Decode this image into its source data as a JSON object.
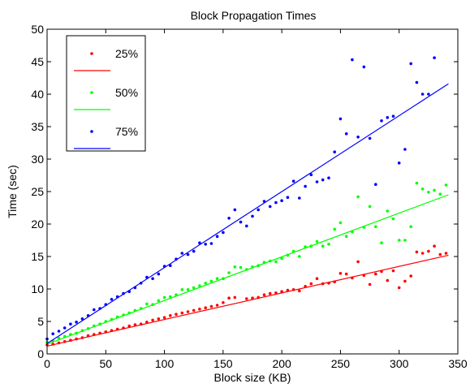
{
  "chart_data": {
    "type": "scatter",
    "title": "Block Propagation Times",
    "xlabel": "Block size (KB)",
    "ylabel": "Time (sec)",
    "xlim": [
      0,
      350
    ],
    "ylim": [
      0,
      50
    ],
    "xticks": [
      0,
      50,
      100,
      150,
      200,
      250,
      300,
      350
    ],
    "yticks": [
      0,
      5,
      10,
      15,
      20,
      25,
      30,
      35,
      40,
      45,
      50
    ],
    "grid": false,
    "legend_position": "top-left",
    "series": [
      {
        "name": "25%",
        "color": "#ff0000",
        "points": [
          [
            0,
            1.4
          ],
          [
            5,
            1.5
          ],
          [
            10,
            1.7
          ],
          [
            15,
            1.9
          ],
          [
            20,
            2.1
          ],
          [
            25,
            2.3
          ],
          [
            30,
            2.5
          ],
          [
            35,
            2.8
          ],
          [
            40,
            3.0
          ],
          [
            45,
            3.2
          ],
          [
            50,
            3.4
          ],
          [
            55,
            3.6
          ],
          [
            60,
            3.8
          ],
          [
            65,
            4.0
          ],
          [
            70,
            4.3
          ],
          [
            75,
            4.5
          ],
          [
            80,
            4.6
          ],
          [
            85,
            4.9
          ],
          [
            90,
            5.2
          ],
          [
            95,
            5.4
          ],
          [
            100,
            5.6
          ],
          [
            105,
            5.9
          ],
          [
            110,
            6.1
          ],
          [
            115,
            6.3
          ],
          [
            120,
            6.5
          ],
          [
            125,
            6.7
          ],
          [
            130,
            6.9
          ],
          [
            135,
            7.1
          ],
          [
            140,
            7.3
          ],
          [
            145,
            7.5
          ],
          [
            150,
            7.9
          ],
          [
            155,
            8.6
          ],
          [
            160,
            8.7
          ],
          [
            170,
            8.5
          ],
          [
            175,
            8.6
          ],
          [
            180,
            8.7
          ],
          [
            185,
            9.1
          ],
          [
            190,
            9.3
          ],
          [
            195,
            9.4
          ],
          [
            200,
            9.6
          ],
          [
            205,
            9.8
          ],
          [
            210,
            9.9
          ],
          [
            215,
            9.7
          ],
          [
            220,
            10.4
          ],
          [
            225,
            10.8
          ],
          [
            230,
            11.6
          ],
          [
            235,
            10.8
          ],
          [
            240,
            10.9
          ],
          [
            245,
            11.1
          ],
          [
            250,
            12.4
          ],
          [
            255,
            12.3
          ],
          [
            260,
            11.7
          ],
          [
            265,
            14.2
          ],
          [
            270,
            12.1
          ],
          [
            275,
            10.7
          ],
          [
            280,
            12.3
          ],
          [
            285,
            12.7
          ],
          [
            290,
            11.3
          ],
          [
            295,
            12.8
          ],
          [
            300,
            10.2
          ],
          [
            305,
            11.2
          ],
          [
            310,
            12.0
          ],
          [
            315,
            15.7
          ],
          [
            320,
            15.5
          ],
          [
            325,
            15.8
          ],
          [
            330,
            16.6
          ],
          [
            335,
            15.3
          ],
          [
            340,
            15.5
          ]
        ],
        "fit": [
          [
            0,
            1.2
          ],
          [
            342,
            15.2
          ]
        ]
      },
      {
        "name": "50%",
        "color": "#00ff00",
        "points": [
          [
            0,
            1.8
          ],
          [
            5,
            2.0
          ],
          [
            10,
            2.4
          ],
          [
            15,
            2.7
          ],
          [
            20,
            3.0
          ],
          [
            25,
            3.2
          ],
          [
            30,
            3.6
          ],
          [
            35,
            3.9
          ],
          [
            40,
            4.3
          ],
          [
            45,
            4.6
          ],
          [
            50,
            5.0
          ],
          [
            55,
            5.3
          ],
          [
            60,
            5.7
          ],
          [
            65,
            6.0
          ],
          [
            70,
            6.3
          ],
          [
            75,
            6.7
          ],
          [
            80,
            7.0
          ],
          [
            85,
            7.7
          ],
          [
            90,
            7.6
          ],
          [
            95,
            8.2
          ],
          [
            100,
            8.7
          ],
          [
            105,
            8.8
          ],
          [
            110,
            9.1
          ],
          [
            115,
            9.9
          ],
          [
            120,
            9.9
          ],
          [
            125,
            10.2
          ],
          [
            130,
            10.5
          ],
          [
            135,
            10.9
          ],
          [
            140,
            11.2
          ],
          [
            145,
            11.6
          ],
          [
            150,
            11.6
          ],
          [
            155,
            12.5
          ],
          [
            160,
            13.4
          ],
          [
            165,
            13.3
          ],
          [
            170,
            13.0
          ],
          [
            175,
            13.4
          ],
          [
            180,
            13.6
          ],
          [
            185,
            14.1
          ],
          [
            190,
            14.3
          ],
          [
            195,
            14.2
          ],
          [
            200,
            14.7
          ],
          [
            205,
            15.2
          ],
          [
            210,
            15.8
          ],
          [
            215,
            15.0
          ],
          [
            220,
            16.5
          ],
          [
            225,
            16.6
          ],
          [
            230,
            17.3
          ],
          [
            235,
            16.6
          ],
          [
            240,
            16.9
          ],
          [
            245,
            19.2
          ],
          [
            250,
            20.2
          ],
          [
            255,
            18.1
          ],
          [
            260,
            18.8
          ],
          [
            265,
            24.2
          ],
          [
            270,
            19.5
          ],
          [
            275,
            22.7
          ],
          [
            280,
            19.6
          ],
          [
            285,
            17.1
          ],
          [
            290,
            22.0
          ],
          [
            295,
            20.8
          ],
          [
            300,
            17.5
          ],
          [
            305,
            17.5
          ],
          [
            310,
            19.6
          ],
          [
            315,
            26.3
          ],
          [
            320,
            25.4
          ],
          [
            325,
            24.9
          ],
          [
            330,
            25.2
          ],
          [
            335,
            24.6
          ],
          [
            340,
            26.0
          ]
        ],
        "fit": [
          [
            0,
            1.5
          ],
          [
            342,
            24.5
          ]
        ]
      },
      {
        "name": "75%",
        "color": "#0000ff",
        "points": [
          [
            0,
            2.3
          ],
          [
            5,
            3.1
          ],
          [
            10,
            3.5
          ],
          [
            15,
            4.0
          ],
          [
            20,
            4.6
          ],
          [
            25,
            4.9
          ],
          [
            30,
            5.4
          ],
          [
            35,
            5.9
          ],
          [
            40,
            6.8
          ],
          [
            45,
            7.0
          ],
          [
            50,
            7.6
          ],
          [
            55,
            8.4
          ],
          [
            60,
            8.8
          ],
          [
            65,
            9.3
          ],
          [
            70,
            9.6
          ],
          [
            75,
            10.2
          ],
          [
            80,
            10.9
          ],
          [
            85,
            11.8
          ],
          [
            90,
            11.6
          ],
          [
            95,
            12.3
          ],
          [
            100,
            13.5
          ],
          [
            105,
            13.6
          ],
          [
            110,
            14.6
          ],
          [
            115,
            15.5
          ],
          [
            120,
            15.3
          ],
          [
            125,
            15.8
          ],
          [
            130,
            17.1
          ],
          [
            135,
            16.9
          ],
          [
            140,
            17.0
          ],
          [
            145,
            18.1
          ],
          [
            150,
            18.7
          ],
          [
            155,
            20.9
          ],
          [
            160,
            22.2
          ],
          [
            165,
            20.3
          ],
          [
            170,
            19.7
          ],
          [
            175,
            21.2
          ],
          [
            180,
            22.2
          ],
          [
            185,
            23.5
          ],
          [
            190,
            22.7
          ],
          [
            195,
            23.3
          ],
          [
            200,
            23.6
          ],
          [
            205,
            24.1
          ],
          [
            210,
            26.6
          ],
          [
            215,
            24.0
          ],
          [
            220,
            25.8
          ],
          [
            225,
            27.6
          ],
          [
            230,
            26.5
          ],
          [
            235,
            26.8
          ],
          [
            240,
            27.1
          ],
          [
            245,
            31.1
          ],
          [
            250,
            36.2
          ],
          [
            255,
            33.9
          ],
          [
            260,
            45.3
          ],
          [
            265,
            33.4
          ],
          [
            270,
            44.2
          ],
          [
            275,
            33.2
          ],
          [
            280,
            26.1
          ],
          [
            285,
            35.9
          ],
          [
            290,
            36.4
          ],
          [
            295,
            36.6
          ],
          [
            300,
            29.4
          ],
          [
            305,
            31.5
          ],
          [
            310,
            44.7
          ],
          [
            315,
            41.8
          ],
          [
            320,
            40.0
          ],
          [
            325,
            40.0
          ],
          [
            330,
            45.6
          ]
        ],
        "fit": [
          [
            0,
            1.6
          ],
          [
            342,
            41.6
          ]
        ]
      }
    ]
  }
}
